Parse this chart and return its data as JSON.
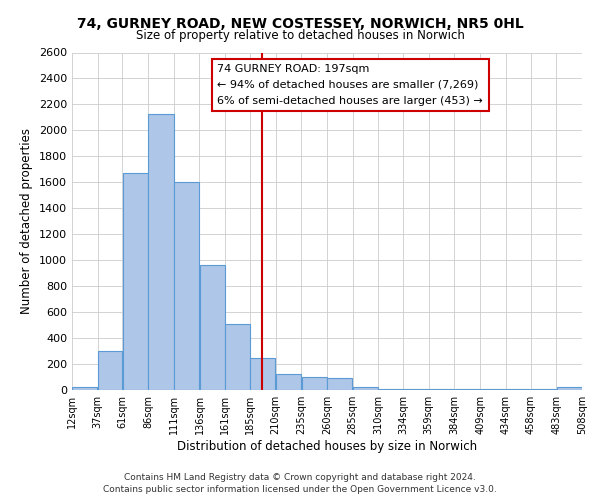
{
  "title": "74, GURNEY ROAD, NEW COSTESSEY, NORWICH, NR5 0HL",
  "subtitle": "Size of property relative to detached houses in Norwich",
  "xlabel": "Distribution of detached houses by size in Norwich",
  "ylabel": "Number of detached properties",
  "bar_left_edges": [
    12,
    37,
    61,
    86,
    111,
    136,
    161,
    185,
    210,
    235,
    260,
    285,
    310,
    334,
    359,
    384,
    409,
    434,
    458,
    483
  ],
  "bar_widths": [
    25,
    24,
    25,
    25,
    25,
    25,
    24,
    25,
    25,
    25,
    25,
    25,
    24,
    25,
    25,
    25,
    25,
    24,
    25,
    25
  ],
  "bar_heights": [
    20,
    300,
    1670,
    2130,
    1600,
    960,
    505,
    250,
    125,
    100,
    90,
    25,
    5,
    5,
    5,
    5,
    5,
    5,
    5,
    20
  ],
  "bar_color": "#aec6e8",
  "bar_edge_color": "#5b9bd5",
  "vline_x": 197,
  "vline_color": "#cc0000",
  "ylim": [
    0,
    2600
  ],
  "yticks": [
    0,
    200,
    400,
    600,
    800,
    1000,
    1200,
    1400,
    1600,
    1800,
    2000,
    2200,
    2400,
    2600
  ],
  "xtick_labels": [
    "12sqm",
    "37sqm",
    "61sqm",
    "86sqm",
    "111sqm",
    "136sqm",
    "161sqm",
    "185sqm",
    "210sqm",
    "235sqm",
    "260sqm",
    "285sqm",
    "310sqm",
    "334sqm",
    "359sqm",
    "384sqm",
    "409sqm",
    "434sqm",
    "458sqm",
    "483sqm",
    "508sqm"
  ],
  "annotation_title": "74 GURNEY ROAD: 197sqm",
  "annotation_line1": "← 94% of detached houses are smaller (7,269)",
  "annotation_line2": "6% of semi-detached houses are larger (453) →",
  "annotation_box_color": "#ffffff",
  "annotation_box_edge": "#cc0000",
  "footer1": "Contains HM Land Registry data © Crown copyright and database right 2024.",
  "footer2": "Contains public sector information licensed under the Open Government Licence v3.0.",
  "background_color": "#ffffff",
  "grid_color": "#cccccc"
}
